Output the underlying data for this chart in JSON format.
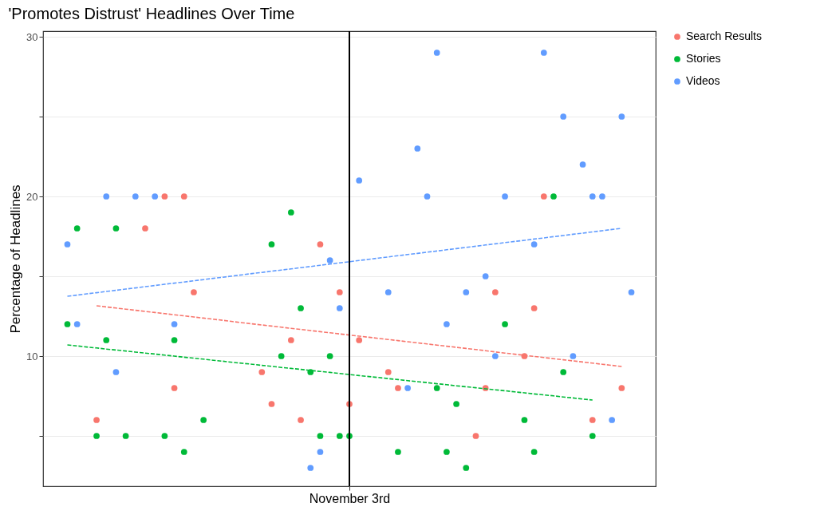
{
  "chart_data": {
    "type": "scatter",
    "title": "'Promotes Distrust' Headlines Over Time",
    "ylabel": "Percentage of Headlines",
    "categories": [
      null,
      null,
      null,
      null,
      null,
      null,
      null,
      null,
      null,
      null,
      null,
      null,
      null,
      null,
      null,
      null,
      null,
      null,
      null,
      null,
      null,
      null,
      null,
      null,
      null,
      null,
      null,
      null,
      null,
      null,
      null,
      "November 3rd",
      null,
      null,
      null,
      null,
      null,
      null,
      null,
      null,
      null,
      null,
      null,
      null,
      null,
      null,
      null,
      null,
      null,
      null,
      null,
      null,
      null,
      null,
      null,
      null,
      null,
      null,
      null,
      null,
      null,
      null,
      null
    ],
    "ylim": [
      1.85,
      30.35
    ],
    "yticks": [
      {
        "value": 5,
        "label": null
      },
      10,
      {
        "value": 15,
        "label": null
      },
      20,
      {
        "value": 25,
        "label": null
      },
      30
    ],
    "grid": true,
    "legend": "right",
    "marker": "circle",
    "line_style": "dashed",
    "ref_lines": [
      {
        "axis": "x",
        "value": "November 3rd",
        "color": "#000000"
      }
    ],
    "series": [
      {
        "name": "Search Results",
        "color": "#f8766d",
        "values": [
          null,
          null,
          null,
          null,
          null,
          6,
          null,
          null,
          null,
          null,
          18,
          null,
          20,
          8,
          20,
          14,
          null,
          null,
          null,
          null,
          null,
          null,
          9,
          7,
          null,
          11,
          6,
          null,
          17,
          null,
          14,
          7,
          11,
          null,
          null,
          9,
          8,
          null,
          null,
          null,
          null,
          null,
          null,
          null,
          5,
          8,
          14,
          null,
          null,
          10,
          13,
          20,
          null,
          null,
          null,
          null,
          6,
          null,
          null,
          8,
          null,
          null,
          null
        ]
      },
      {
        "name": "Stories",
        "color": "#00ba38",
        "values": [
          null,
          null,
          12,
          18,
          null,
          5,
          11,
          18,
          5,
          null,
          null,
          null,
          5,
          11,
          4,
          null,
          6,
          null,
          null,
          null,
          null,
          null,
          null,
          17,
          10,
          19,
          13,
          9,
          5,
          10,
          5,
          5,
          null,
          null,
          null,
          null,
          4,
          null,
          null,
          null,
          8,
          4,
          7,
          3,
          null,
          null,
          null,
          12,
          null,
          6,
          4,
          null,
          20,
          9,
          null,
          null,
          5,
          null,
          null,
          null,
          null,
          null,
          null
        ]
      },
      {
        "name": "Videos",
        "color": "#619cff",
        "values": [
          null,
          null,
          17,
          12,
          null,
          null,
          20,
          9,
          null,
          20,
          null,
          20,
          null,
          12,
          null,
          null,
          null,
          null,
          null,
          null,
          null,
          null,
          null,
          null,
          null,
          null,
          null,
          3,
          4,
          16,
          13,
          null,
          21,
          null,
          null,
          14,
          null,
          8,
          23,
          20,
          29,
          12,
          null,
          14,
          null,
          15,
          10,
          20,
          null,
          null,
          17,
          29,
          null,
          25,
          10,
          22,
          20,
          20,
          6,
          25,
          14,
          null,
          null
        ]
      },
      {
        "type": "line",
        "color": "#f8766d",
        "marker": "none",
        "values": [
          null,
          null,
          null,
          null,
          null,
          13.15,
          13.08,
          13.01,
          12.94,
          12.87,
          12.8,
          12.73,
          12.66,
          12.59,
          12.52,
          12.45,
          12.38,
          12.31,
          12.24,
          12.16,
          12.09,
          12.02,
          11.95,
          11.88,
          11.81,
          11.74,
          11.67,
          11.6,
          11.53,
          11.46,
          11.39,
          11.32,
          11.25,
          11.18,
          11.11,
          11.04,
          10.97,
          10.9,
          10.83,
          10.76,
          10.69,
          10.62,
          10.55,
          10.48,
          10.41,
          10.34,
          10.26,
          10.19,
          10.12,
          10.05,
          9.98,
          9.91,
          9.84,
          9.77,
          9.7,
          9.63,
          9.56,
          9.49,
          9.42,
          9.35,
          null,
          null,
          null
        ]
      },
      {
        "type": "line",
        "color": "#00ba38",
        "marker": "none",
        "values": [
          null,
          null,
          10.7,
          10.64,
          10.57,
          10.51,
          10.44,
          10.38,
          10.32,
          10.25,
          10.19,
          10.13,
          10.06,
          10.0,
          9.93,
          9.87,
          9.81,
          9.74,
          9.68,
          9.61,
          9.55,
          9.49,
          9.42,
          9.36,
          9.29,
          9.23,
          9.17,
          9.1,
          9.04,
          8.98,
          8.91,
          8.85,
          8.78,
          8.72,
          8.66,
          8.59,
          8.53,
          8.46,
          8.4,
          8.34,
          8.27,
          8.21,
          8.14,
          8.08,
          8.02,
          7.95,
          7.89,
          7.83,
          7.76,
          7.7,
          7.63,
          7.57,
          7.51,
          7.44,
          7.38,
          7.31,
          7.25,
          null,
          null,
          null,
          null,
          null,
          null
        ]
      },
      {
        "type": "line",
        "color": "#619cff",
        "marker": "none",
        "values": [
          null,
          null,
          13.75,
          13.82,
          13.9,
          13.97,
          14.05,
          14.12,
          14.2,
          14.27,
          14.35,
          14.42,
          14.5,
          14.57,
          14.64,
          14.72,
          14.79,
          14.87,
          14.94,
          15.02,
          15.09,
          15.17,
          15.24,
          15.32,
          15.39,
          15.46,
          15.54,
          15.61,
          15.69,
          15.76,
          15.84,
          15.91,
          15.99,
          16.06,
          16.14,
          16.21,
          16.29,
          16.36,
          16.43,
          16.51,
          16.58,
          16.66,
          16.73,
          16.81,
          16.88,
          16.96,
          17.03,
          17.11,
          17.18,
          17.25,
          17.33,
          17.4,
          17.48,
          17.55,
          17.63,
          17.7,
          17.78,
          17.85,
          17.93,
          18.0,
          null,
          null,
          null
        ]
      }
    ]
  }
}
